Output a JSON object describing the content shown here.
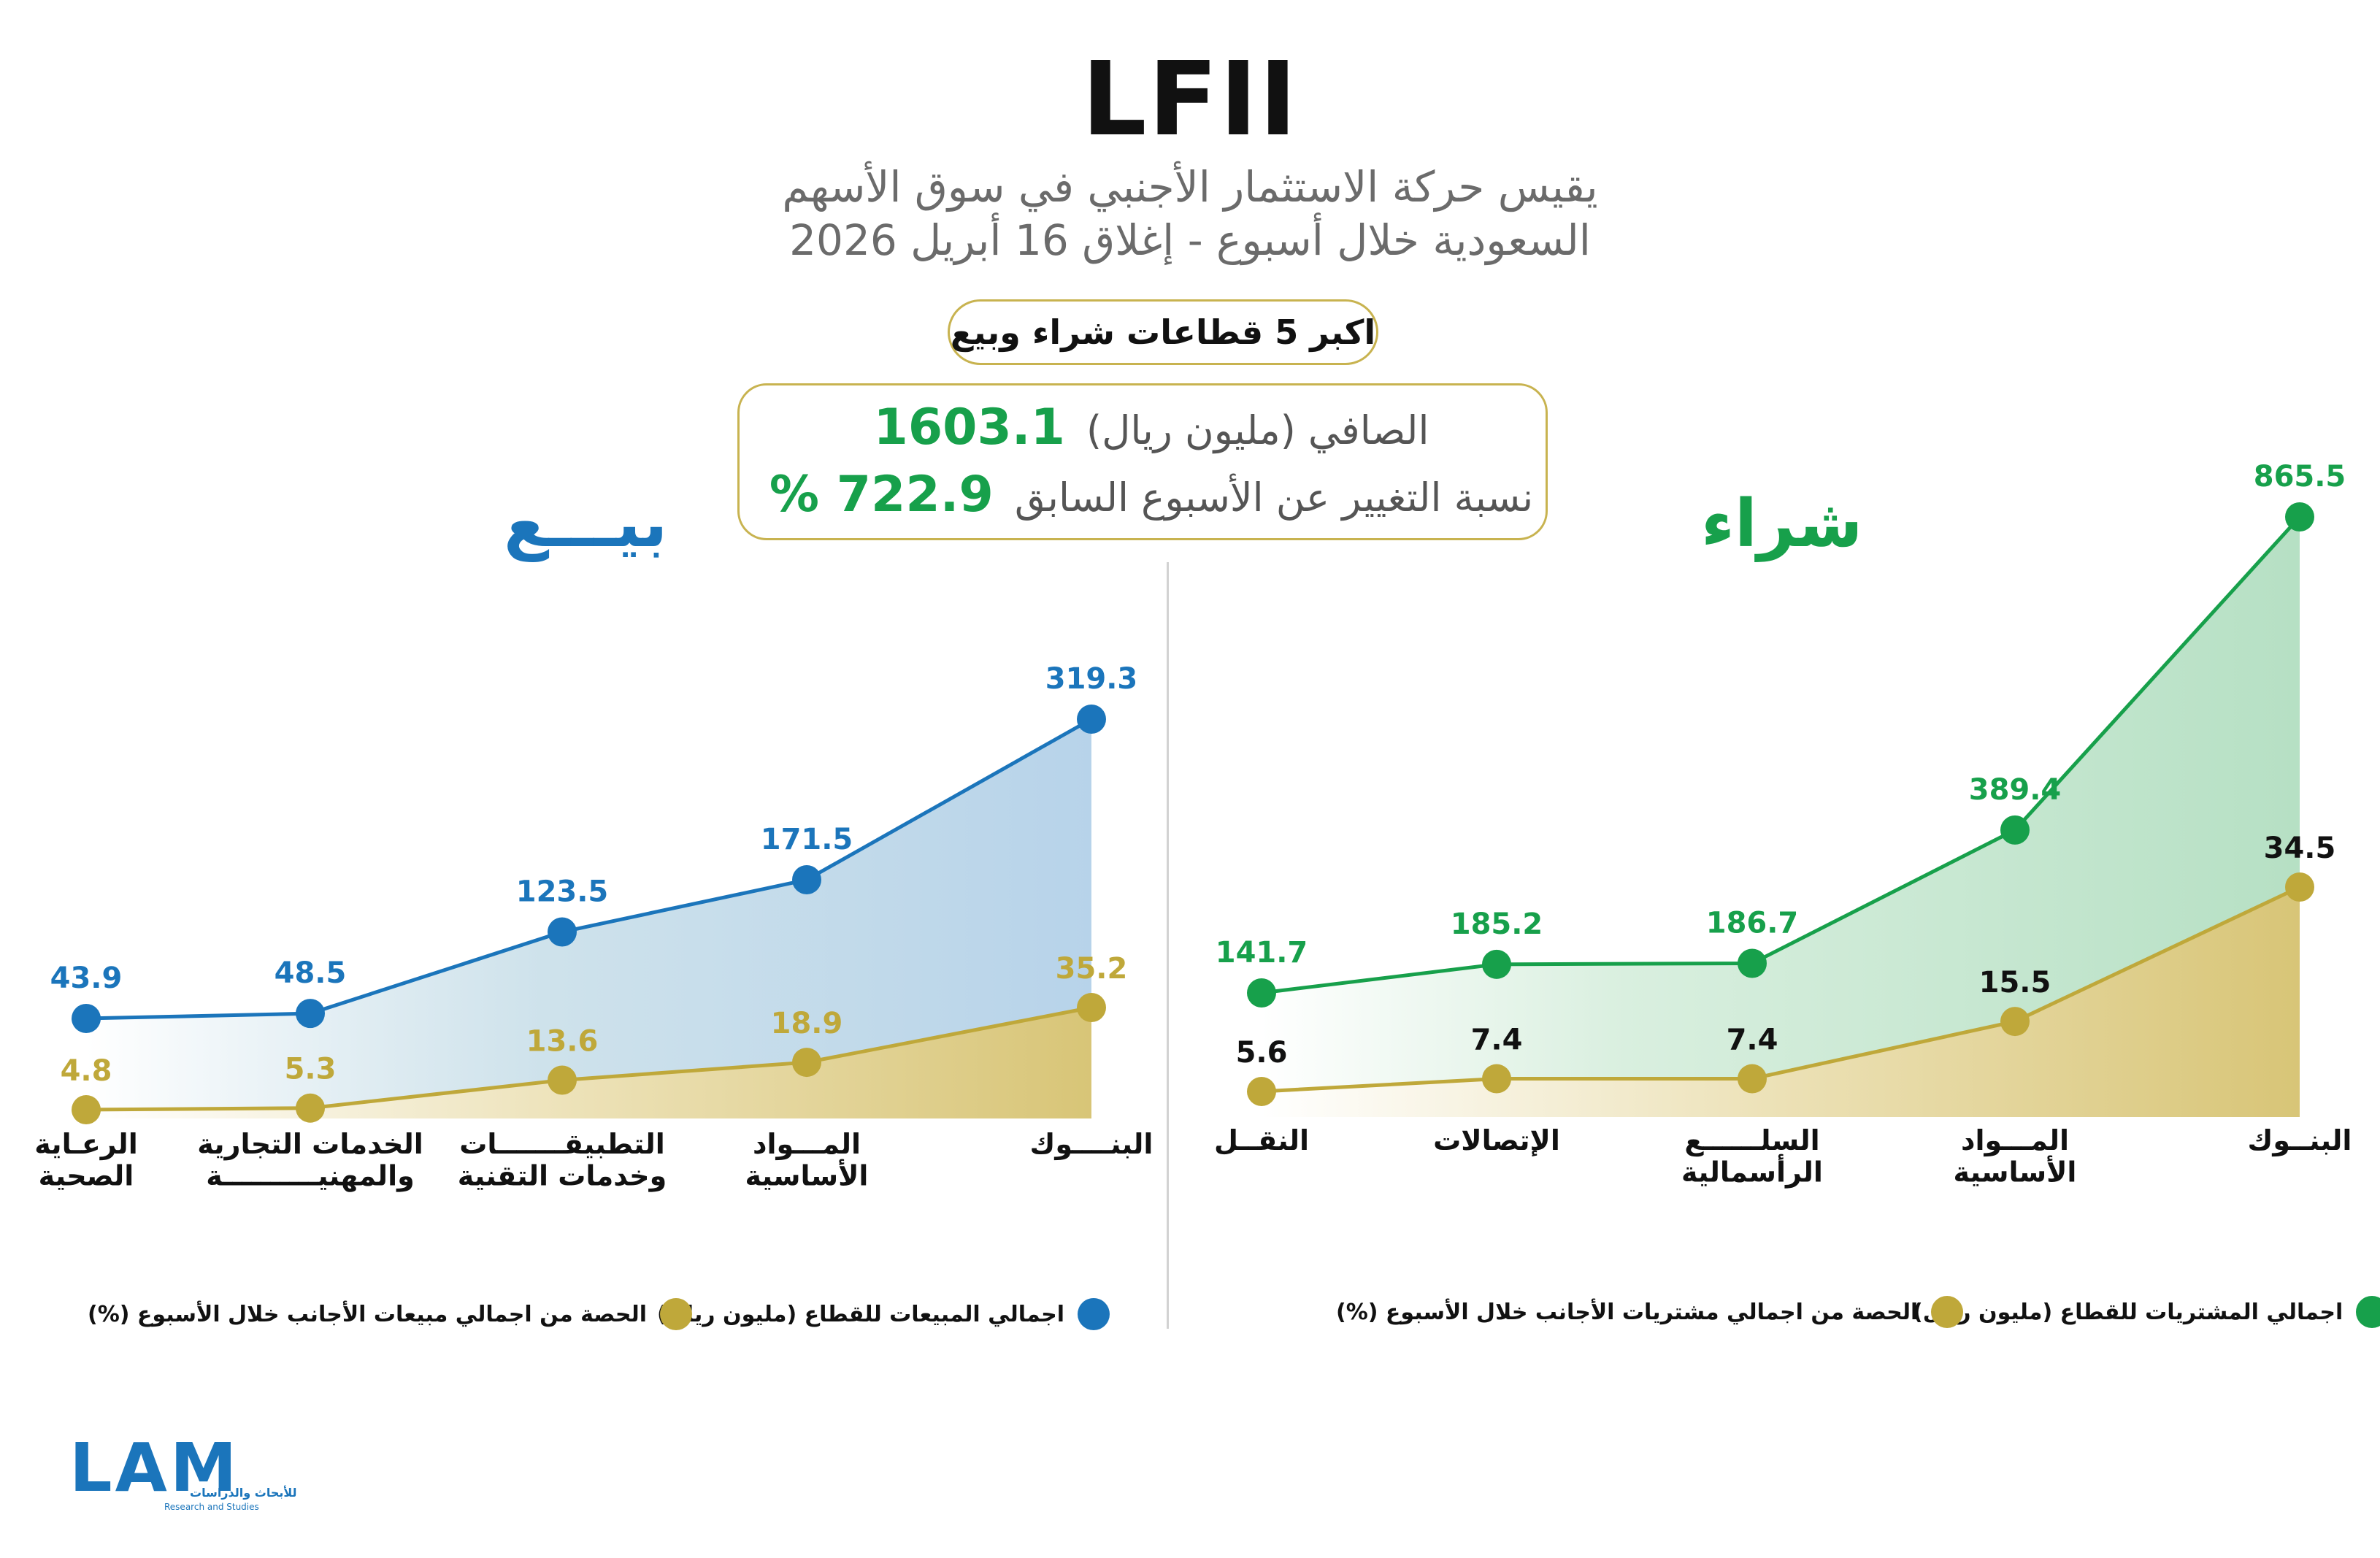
{
  "header": {
    "title": "LFII",
    "subtitle_line1": "يقيس حركة الاستثمار الأجنبي في سوق الأسهم",
    "subtitle_line2": "السعودية خلال أسبوع - إغلاق 16 أبريل 2026",
    "pill_label": "اكبر 5 قطاعات شراء وبيع"
  },
  "summary": {
    "net_label": "الصافي (مليون ريال)",
    "net_value": "1603.1",
    "change_label": "نسبة التغيير عن الأسبوع السابق",
    "change_value": "722.9 %"
  },
  "sell": {
    "title": "بيـــع",
    "legend_total": "اجمالي المبيعات للقطاع (مليون ريال)",
    "legend_share": "الحصة من اجمالي مبيعات الأجانب خلال الأسبوع (%)"
  },
  "buy": {
    "title": "شراء",
    "legend_total": "اجمالي المشتريات للقطاع (مليون ريال)",
    "legend_share": "الحصة من اجمالي مشتريات الأجانب خلال الأسبوع (%)"
  },
  "colors": {
    "sell_blue": "#1b75bb",
    "buy_green": "#17a04b",
    "share_gold": "#bfa83a",
    "sell_fill": "#b7d3ea",
    "buy_fill": "#b6e0c4",
    "gold_fill": "#dcc97e"
  },
  "logo": {
    "text": "LAM",
    "tagline_ar": "للأبحاث والدراسات",
    "tagline_en": "Research and Studies"
  },
  "chart_data": [
    {
      "type": "area",
      "name": "sell",
      "categories": [
        "البنــــوك",
        "المـــواد\nالأساسية",
        "التطبيقـــــــات\nوخدمات التقنية",
        "الخدمات التجارية\nوالمهنيــــــــــة",
        "الرعـاية\nالصحية"
      ],
      "series": [
        {
          "name": "اجمالي المبيعات للقطاع (مليون ريال)",
          "values": [
            319.3,
            171.5,
            123.5,
            48.5,
            43.9
          ]
        },
        {
          "name": "الحصة من اجمالي مبيعات الأجانب خلال الأسبوع (%)",
          "values": [
            35.2,
            18.9,
            13.6,
            5.3,
            4.8
          ]
        }
      ]
    },
    {
      "type": "area",
      "name": "buy",
      "categories": [
        "البنــوك",
        "المـــواد\nالأساسية",
        "السلــــــع\nالرأسمالية",
        "الإتصالات",
        "النقــل"
      ],
      "series": [
        {
          "name": "اجمالي المشتريات للقطاع (مليون ريال)",
          "values": [
            865.5,
            389.4,
            186.7,
            185.2,
            141.7
          ]
        },
        {
          "name": "الحصة من اجمالي مشتريات الأجانب خلال الأسبوع (%)",
          "values": [
            34.5,
            15.5,
            7.4,
            7.4,
            5.6
          ]
        }
      ]
    }
  ]
}
